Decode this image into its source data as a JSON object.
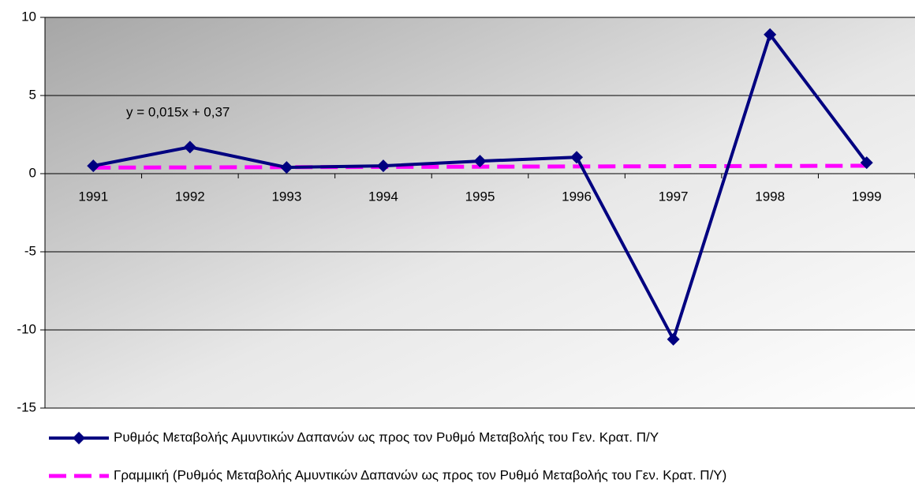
{
  "chart_data": {
    "type": "line",
    "categories": [
      "1991",
      "1992",
      "1993",
      "1994",
      "1995",
      "1996",
      "1997",
      "1998",
      "1999"
    ],
    "series": [
      {
        "name": "Ρυθμός Μεταβολής Αμυντικών Δαπανών ως προς τον Ρυθμό Μεταβολής του Γεν. Κρατ. Π/Υ",
        "color": "#000080",
        "style": "solid",
        "marker": "diamond",
        "values": [
          0.5,
          1.7,
          0.4,
          0.5,
          0.8,
          1.05,
          -10.6,
          8.9,
          0.7
        ]
      },
      {
        "name": "Γραμμική (Ρυθμός Μεταβολής Αμυντικών Δαπανών ως προς τον Ρυθμό Μεταβολής του Γεν. Κρατ. Π/Υ)",
        "color": "#ff00ff",
        "style": "dashed",
        "values": [
          0.385,
          0.4,
          0.415,
          0.43,
          0.445,
          0.46,
          0.475,
          0.49,
          0.505
        ]
      }
    ],
    "annotation": "y = 0,015x + 0,37",
    "ylim": [
      -15,
      10
    ],
    "yticks": [
      -15,
      -10,
      -5,
      0,
      5,
      10
    ],
    "grid": true,
    "legend": "bottom"
  }
}
